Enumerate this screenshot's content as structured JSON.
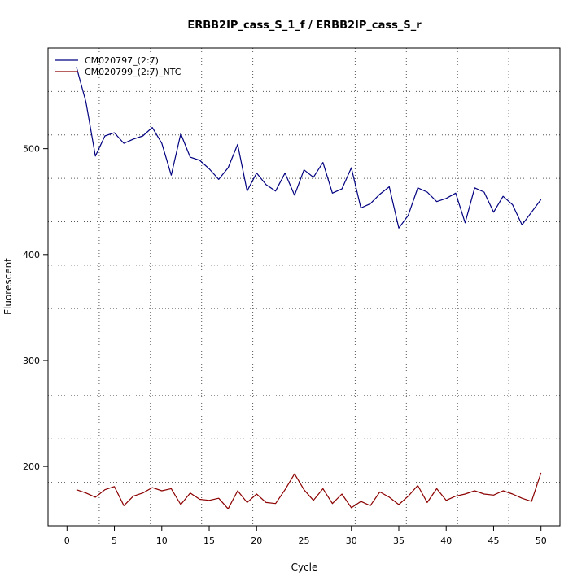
{
  "chart_data": {
    "type": "line",
    "title": "ERBB2IP_cass_S_1_f / ERBB2IP_cass_S_r",
    "xlabel": "Cycle",
    "ylabel": "Fluorescent",
    "xlim": [
      -2,
      52
    ],
    "ylim": [
      144,
      595
    ],
    "x_ticks": [
      0,
      5,
      10,
      15,
      20,
      25,
      30,
      35,
      40,
      45,
      50
    ],
    "y_ticks": [
      200,
      300,
      400,
      500
    ],
    "grid": "dotted",
    "legend_position": "top-left",
    "x": [
      1,
      2,
      3,
      4,
      5,
      6,
      7,
      8,
      9,
      10,
      11,
      12,
      13,
      14,
      15,
      16,
      17,
      18,
      19,
      20,
      21,
      22,
      23,
      24,
      25,
      26,
      27,
      28,
      29,
      30,
      31,
      32,
      33,
      34,
      35,
      36,
      37,
      38,
      39,
      40,
      41,
      42,
      43,
      44,
      45,
      46,
      47,
      48,
      49,
      50
    ],
    "series": [
      {
        "name": "CM020797_(2:7)",
        "color": "#000080",
        "values": [
          577,
          544,
          493,
          512,
          515,
          505,
          509,
          512,
          520,
          505,
          475,
          514,
          492,
          489,
          481,
          471,
          482,
          504,
          460,
          477,
          466,
          460,
          477,
          456,
          480,
          473,
          487,
          458,
          462,
          482,
          444,
          448,
          457,
          464,
          425,
          437,
          463,
          459,
          450,
          453,
          458,
          430,
          463,
          459,
          440,
          455,
          447,
          428,
          440,
          452
        ]
      },
      {
        "name": "CM020799_(2:7)_NTC",
        "color": "#8B0000",
        "values": [
          178,
          175,
          171,
          178,
          181,
          163,
          172,
          175,
          180,
          177,
          179,
          164,
          175,
          169,
          168,
          170,
          160,
          177,
          166,
          174,
          166,
          165,
          178,
          193,
          178,
          168,
          179,
          165,
          174,
          161,
          167,
          163,
          176,
          171,
          164,
          172,
          182,
          166,
          179,
          168,
          172,
          174,
          177,
          174,
          173,
          177,
          174,
          170,
          167,
          194
        ]
      }
    ]
  }
}
